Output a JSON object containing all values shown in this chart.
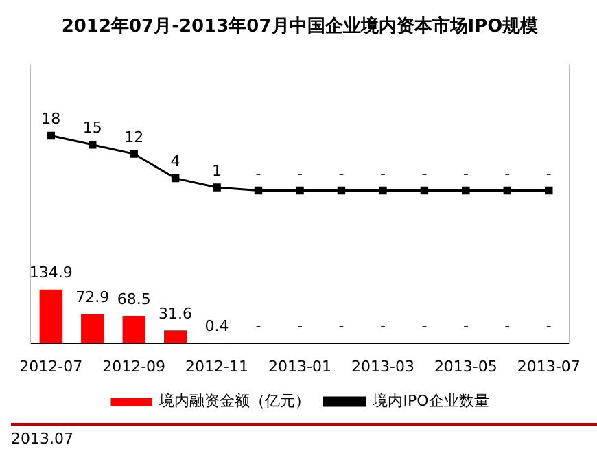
{
  "chart_data": {
    "type": "bar",
    "title": "2012年07月-2013年07月中国企业境内资本市场IPO规模",
    "categories": [
      "2012-07",
      null,
      "2012-09",
      null,
      "2012-11",
      null,
      "2013-01",
      null,
      "2013-03",
      null,
      "2013-05",
      null,
      "2013-07"
    ],
    "series": [
      {
        "name": "境内融资金额（亿元）",
        "color": "#ff0000",
        "values": [
          134.9,
          72.9,
          68.5,
          31.6,
          0.4,
          0,
          0,
          0,
          0,
          0,
          0,
          0,
          0
        ],
        "value_labels": [
          "134.9",
          "72.9",
          "68.5",
          "31.6",
          "0.4",
          "-",
          "-",
          "-",
          "-",
          "-",
          "-",
          "-",
          "-"
        ]
      },
      {
        "name": "境内IPO企业数量",
        "type": "line",
        "axis": "y2",
        "color": "#000000",
        "values": [
          18,
          15,
          12,
          4,
          1,
          0,
          0,
          0,
          0,
          0,
          0,
          0,
          0
        ],
        "value_labels": [
          "18",
          "15",
          "12",
          "4",
          "1",
          "-",
          "-",
          "-",
          "-",
          "-",
          "-",
          "-",
          "-"
        ]
      }
    ],
    "ylim": [
      0,
      700
    ],
    "y2lim": [
      -50,
      41
    ],
    "tick_labels": "x",
    "grid": false,
    "marker": "square",
    "legend": "bottom",
    "annotations": [
      "2013.07"
    ]
  }
}
